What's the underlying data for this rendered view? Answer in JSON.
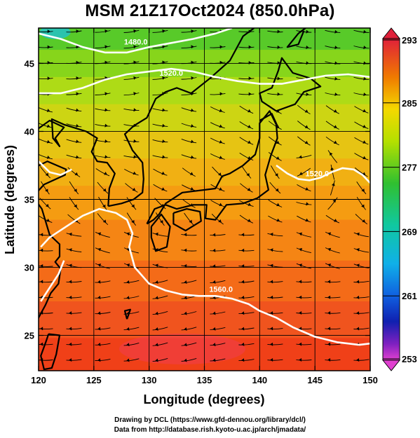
{
  "title": "MSM 21Z17Oct2024 (850.0hPa)",
  "xlabel": "Longitude (degrees)",
  "ylabel": "Latitude  (degrees)",
  "x_ticks": [
    "120",
    "125",
    "130",
    "135",
    "140",
    "145",
    "150"
  ],
  "y_ticks": [
    "25",
    "30",
    "35",
    "40",
    "45"
  ],
  "colorbar": {
    "ticks": [
      "293",
      "285",
      "277",
      "269",
      "261",
      "253"
    ],
    "min": 253,
    "max": 293,
    "unit": ""
  },
  "contour_labels": [
    "1480.0",
    "1520.0",
    "1560.0"
  ],
  "credit_line1": "Drawing by DCL (https://www.gfd-dennou.org/library/dcl/)",
  "credit_line2": "Data from http://database.rish.kyoto-u.ac.jp/arch/jmadata/",
  "map": {
    "lon_range": [
      120,
      150
    ],
    "lat_range": [
      22.4,
      47.6
    ],
    "field": "temperature (K) with streamlines and geopotential height contours",
    "contours": [
      {
        "label": "1480.0",
        "lonlat": [
          [
            120,
            47.2
          ],
          [
            122,
            46.8
          ],
          [
            124,
            46.2
          ],
          [
            126,
            45.8
          ],
          [
            128,
            45.8
          ],
          [
            130,
            46.2
          ],
          [
            132,
            46.5
          ],
          [
            134,
            46.8
          ],
          [
            136,
            47.2
          ],
          [
            137.5,
            47.6
          ]
        ]
      },
      {
        "label": "1520.0",
        "lonlat": [
          [
            120,
            42.8
          ],
          [
            122,
            42.8
          ],
          [
            124,
            43.2
          ],
          [
            126,
            43.8
          ],
          [
            128,
            44.2
          ],
          [
            130,
            44.4
          ],
          [
            132,
            44.6
          ],
          [
            134,
            44.4
          ],
          [
            136,
            44
          ],
          [
            138,
            43.7
          ],
          [
            140,
            43.5
          ],
          [
            142,
            43.5
          ],
          [
            144,
            43.8
          ],
          [
            146,
            44.1
          ],
          [
            148,
            44.2
          ],
          [
            150,
            44
          ]
        ]
      },
      {
        "label": "1520.0",
        "lonlat": [
          [
            120,
            37.8
          ],
          [
            121,
            37
          ],
          [
            122,
            36.8
          ],
          [
            123,
            37.2
          ]
        ]
      },
      {
        "label": "1520.0",
        "lonlat": [
          [
            141.5,
            37.5
          ],
          [
            142.5,
            36.9
          ],
          [
            143.5,
            36.5
          ],
          [
            144.5,
            36.4
          ],
          [
            145.5,
            36.6
          ],
          [
            146.5,
            37
          ],
          [
            147.5,
            37.3
          ],
          [
            148.5,
            37.2
          ],
          [
            149.3,
            36.8
          ],
          [
            150,
            36.2
          ]
        ]
      },
      {
        "label": "1560.0",
        "lonlat": [
          [
            120.2,
            31.5
          ],
          [
            121,
            32.2
          ],
          [
            122.5,
            33
          ],
          [
            124,
            33.8
          ],
          [
            125.5,
            34.3
          ],
          [
            127,
            34
          ],
          [
            128,
            33.5
          ],
          [
            128.5,
            32.5
          ],
          [
            128.2,
            31.5
          ],
          [
            128.7,
            30
          ],
          [
            130,
            28.8
          ],
          [
            131.5,
            28.3
          ],
          [
            133,
            28
          ],
          [
            134.5,
            27.9
          ],
          [
            136,
            27.9
          ],
          [
            137.5,
            27.7
          ],
          [
            139,
            27.3
          ],
          [
            140,
            26.8
          ],
          [
            141.5,
            26.3
          ],
          [
            143,
            25.6
          ],
          [
            145,
            24.9
          ],
          [
            147,
            24.5
          ],
          [
            149,
            24.3
          ],
          [
            150,
            24.4
          ]
        ]
      },
      {
        "label": "1560.0",
        "lonlat": [
          [
            120.2,
            27.5
          ],
          [
            121,
            28.5
          ],
          [
            121.8,
            29.5
          ],
          [
            122.3,
            30.5
          ]
        ]
      }
    ],
    "stream_directions": [
      {
        "lat_band": [
          42,
          47.6
        ],
        "dir": "east"
      },
      {
        "lat_band": [
          33,
          42
        ],
        "dir": "southeast"
      },
      {
        "lat_band": [
          22.4,
          33
        ],
        "dir": "west-southwest"
      }
    ]
  }
}
